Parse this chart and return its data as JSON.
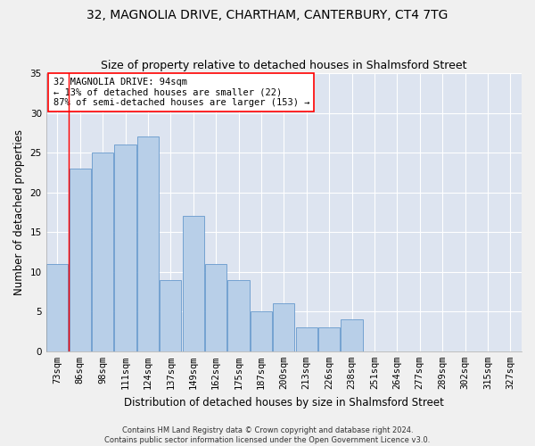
{
  "title": "32, MAGNOLIA DRIVE, CHARTHAM, CANTERBURY, CT4 7TG",
  "subtitle": "Size of property relative to detached houses in Shalmsford Street",
  "xlabel": "Distribution of detached houses by size in Shalmsford Street",
  "ylabel": "Number of detached properties",
  "bin_labels": [
    "73sqm",
    "86sqm",
    "98sqm",
    "111sqm",
    "124sqm",
    "137sqm",
    "149sqm",
    "162sqm",
    "175sqm",
    "187sqm",
    "200sqm",
    "213sqm",
    "226sqm",
    "238sqm",
    "251sqm",
    "264sqm",
    "277sqm",
    "289sqm",
    "302sqm",
    "315sqm",
    "327sqm"
  ],
  "bar_values": [
    11,
    23,
    25,
    26,
    27,
    9,
    17,
    11,
    9,
    5,
    6,
    3,
    3,
    4,
    0,
    0,
    0,
    0,
    0,
    0,
    0
  ],
  "bar_color": "#b8cfe8",
  "bar_edge_color": "#6699cc",
  "bg_color": "#dde4f0",
  "grid_color": "#ffffff",
  "annotation_box_text": "32 MAGNOLIA DRIVE: 94sqm\n← 13% of detached houses are smaller (22)\n87% of semi-detached houses are larger (153) →",
  "ref_line_bin_index": 1,
  "ylim": [
    0,
    35
  ],
  "yticks": [
    0,
    5,
    10,
    15,
    20,
    25,
    30,
    35
  ],
  "footnote": "Contains HM Land Registry data © Crown copyright and database right 2024.\nContains public sector information licensed under the Open Government Licence v3.0.",
  "title_fontsize": 10,
  "subtitle_fontsize": 9,
  "xlabel_fontsize": 8.5,
  "ylabel_fontsize": 8.5,
  "tick_fontsize": 7.5,
  "annot_fontsize": 7.5,
  "footnote_fontsize": 6,
  "fig_bg": "#f0f0f0"
}
